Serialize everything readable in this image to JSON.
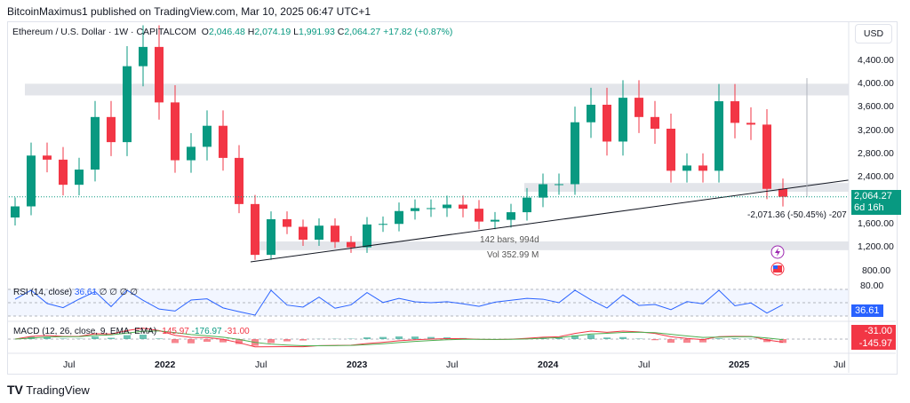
{
  "publisher_line": "BitcoinMaximus1 published on TradingView.com, Mar 10, 2025 06:47 UTC+1",
  "legend": {
    "symbol": "Ethereum / U.S. Dollar · 1W · CAPITALCOM",
    "o_label": "O",
    "o": "2,046.48",
    "h_label": "H",
    "h": "2,074.19",
    "l_label": "L",
    "l": "1,991.93",
    "c_label": "C",
    "c": "2,064.27",
    "change": "+17.82 (+0.87%)"
  },
  "currency_button": "USD",
  "price_axis": [
    "4,400.00",
    "4,000.00",
    "3,600.00",
    "3,200.00",
    "2,800.00",
    "2,400.00",
    "1,600.00",
    "1,200.00",
    "800.00"
  ],
  "last_price_tag": {
    "price": "2,064.27",
    "countdown": "6d 16h"
  },
  "measure": {
    "delta": "-2,071.36 (-50.45%) -207",
    "bars": "142 bars, 994d",
    "volume": "Vol 352.99 M"
  },
  "rsi": {
    "label": "RSI (14, close)",
    "value": "36.61",
    "extra": "∅ ∅ ∅ ∅",
    "axis_label": "80.00"
  },
  "macd": {
    "label": "MACD (12, 26, close, 9, EMA, EMA)",
    "macd": "-145.97",
    "signal": "-176.97",
    "hist": "-31.00"
  },
  "x_axis": [
    "Jul",
    "2022",
    "Jul",
    "2023",
    "Jul",
    "2024",
    "Jul",
    "2025",
    "Jul"
  ],
  "brand": "TradingView",
  "colors": {
    "up": "#089981",
    "down": "#f23645",
    "rsi": "#2962ff",
    "macd_line": "#f23645",
    "signal_line": "#4caf50"
  },
  "chart_data": {
    "type": "candlestick",
    "title": "Ethereum / U.S. Dollar · 1W · CAPITALCOM",
    "x_unit": "month (approx. monthly closes)",
    "x": [
      "2021-03",
      "2021-04",
      "2021-05",
      "2021-06",
      "2021-07",
      "2021-08",
      "2021-09",
      "2021-10",
      "2021-11",
      "2021-12",
      "2022-01",
      "2022-02",
      "2022-03",
      "2022-04",
      "2022-05",
      "2022-06",
      "2022-07",
      "2022-08",
      "2022-09",
      "2022-10",
      "2022-11",
      "2022-12",
      "2023-01",
      "2023-02",
      "2023-03",
      "2023-04",
      "2023-05",
      "2023-06",
      "2023-07",
      "2023-08",
      "2023-09",
      "2023-10",
      "2023-11",
      "2023-12",
      "2024-01",
      "2024-02",
      "2024-03",
      "2024-04",
      "2024-05",
      "2024-06",
      "2024-07",
      "2024-08",
      "2024-09",
      "2024-10",
      "2024-11",
      "2024-12",
      "2025-01",
      "2025-02",
      "2025-03"
    ],
    "close": [
      1900,
      2770,
      2700,
      2270,
      2530,
      3430,
      3000,
      4300,
      4630,
      3680,
      2690,
      2920,
      3280,
      2730,
      1940,
      1070,
      1680,
      1550,
      1330,
      1570,
      1290,
      1200,
      1590,
      1600,
      1820,
      1870,
      1870,
      1930,
      1860,
      1640,
      1670,
      1800,
      2050,
      2280,
      2280,
      3340,
      3640,
      3010,
      3760,
      3430,
      3230,
      2510,
      2600,
      2510,
      3700,
      3330,
      3300,
      2200,
      2064
    ],
    "ylim": [
      700,
      4700
    ],
    "zones": [
      [
        3800,
        4000
      ],
      [
        2150,
        2300
      ],
      [
        1150,
        1300
      ]
    ],
    "trendline": [
      [
        "2022-06",
        950
      ],
      [
        "2025-06",
        2350
      ]
    ]
  }
}
